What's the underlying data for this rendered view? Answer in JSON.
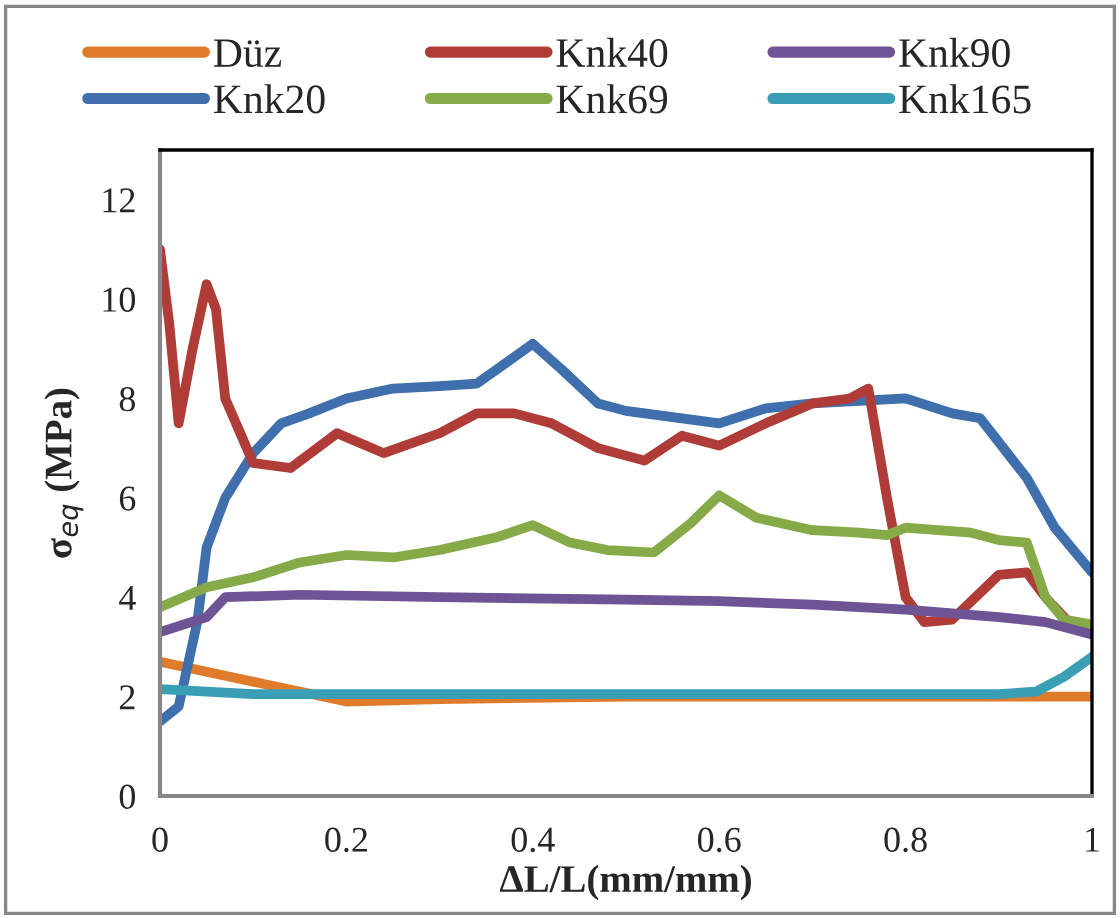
{
  "chart_data": {
    "type": "line",
    "xlabel": "ΔL/L(mm/mm)",
    "ylabel": "σ$_{eq}$ (MPa)",
    "xlim": [
      0,
      1
    ],
    "xticks": [
      0,
      0.2,
      0.4,
      0.6,
      0.8,
      1
    ],
    "ylim": [
      0,
      13
    ],
    "yticks": [
      0,
      2,
      4,
      6,
      8,
      10,
      12
    ],
    "grid": false,
    "legend": "top",
    "marker": "none",
    "line_style": "solid",
    "series": [
      {
        "name": "Düz",
        "color": "#e07b2c",
        "x": [
          0,
          0.1,
          0.2,
          0.3,
          0.5,
          1.0
        ],
        "values": [
          2.7,
          2.3,
          1.9,
          1.95,
          2.0,
          2.0
        ]
      },
      {
        "name": "Knk20",
        "color": "#3f6fad",
        "x": [
          0,
          0.02,
          0.04,
          0.05,
          0.07,
          0.1,
          0.13,
          0.16,
          0.2,
          0.25,
          0.3,
          0.34,
          0.37,
          0.4,
          0.43,
          0.47,
          0.5,
          0.6,
          0.65,
          0.7,
          0.8,
          0.85,
          0.88,
          0.93,
          0.96,
          1.0
        ],
        "values": [
          1.5,
          1.8,
          3.5,
          5.0,
          6.0,
          6.9,
          7.5,
          7.7,
          8.0,
          8.2,
          8.25,
          8.3,
          8.7,
          9.1,
          8.6,
          7.9,
          7.75,
          7.5,
          7.8,
          7.9,
          8.0,
          7.7,
          7.6,
          6.4,
          5.4,
          4.5
        ]
      },
      {
        "name": "Knk40",
        "color": "#b03c38",
        "x": [
          0,
          0.01,
          0.02,
          0.035,
          0.05,
          0.06,
          0.07,
          0.1,
          0.14,
          0.19,
          0.24,
          0.3,
          0.34,
          0.38,
          0.42,
          0.47,
          0.52,
          0.56,
          0.6,
          0.65,
          0.7,
          0.74,
          0.76,
          0.78,
          0.8,
          0.82,
          0.85,
          0.9,
          0.93,
          0.95,
          0.98,
          1.0
        ],
        "values": [
          11.0,
          9.5,
          7.5,
          9.0,
          10.3,
          9.8,
          8.0,
          6.7,
          6.6,
          7.3,
          6.9,
          7.3,
          7.7,
          7.7,
          7.5,
          7.0,
          6.75,
          7.25,
          7.05,
          7.5,
          7.9,
          8.0,
          8.2,
          6.0,
          4.0,
          3.5,
          3.55,
          4.45,
          4.5,
          4.0,
          3.4,
          3.4
        ]
      },
      {
        "name": "Knk69",
        "color": "#86aa48",
        "x": [
          0,
          0.05,
          0.1,
          0.15,
          0.2,
          0.25,
          0.3,
          0.36,
          0.4,
          0.44,
          0.48,
          0.53,
          0.57,
          0.6,
          0.64,
          0.7,
          0.75,
          0.78,
          0.8,
          0.87,
          0.9,
          0.93,
          0.95,
          0.97,
          1.0
        ],
        "values": [
          3.8,
          4.2,
          4.4,
          4.7,
          4.85,
          4.8,
          4.95,
          5.2,
          5.45,
          5.1,
          4.95,
          4.9,
          5.5,
          6.05,
          5.6,
          5.35,
          5.3,
          5.25,
          5.4,
          5.3,
          5.15,
          5.1,
          4.0,
          3.55,
          3.45
        ]
      },
      {
        "name": "Knk90",
        "color": "#6e5494",
        "x": [
          0,
          0.05,
          0.07,
          0.15,
          0.3,
          0.5,
          0.6,
          0.7,
          0.8,
          0.9,
          0.95,
          1.0
        ],
        "values": [
          3.3,
          3.6,
          4.0,
          4.05,
          4.0,
          3.95,
          3.92,
          3.85,
          3.75,
          3.6,
          3.5,
          3.25
        ]
      },
      {
        "name": "Knk165",
        "color": "#3a9eb4",
        "x": [
          0,
          0.1,
          0.9,
          0.94,
          0.97,
          1.0
        ],
        "values": [
          2.15,
          2.05,
          2.05,
          2.1,
          2.4,
          2.8
        ]
      }
    ]
  }
}
